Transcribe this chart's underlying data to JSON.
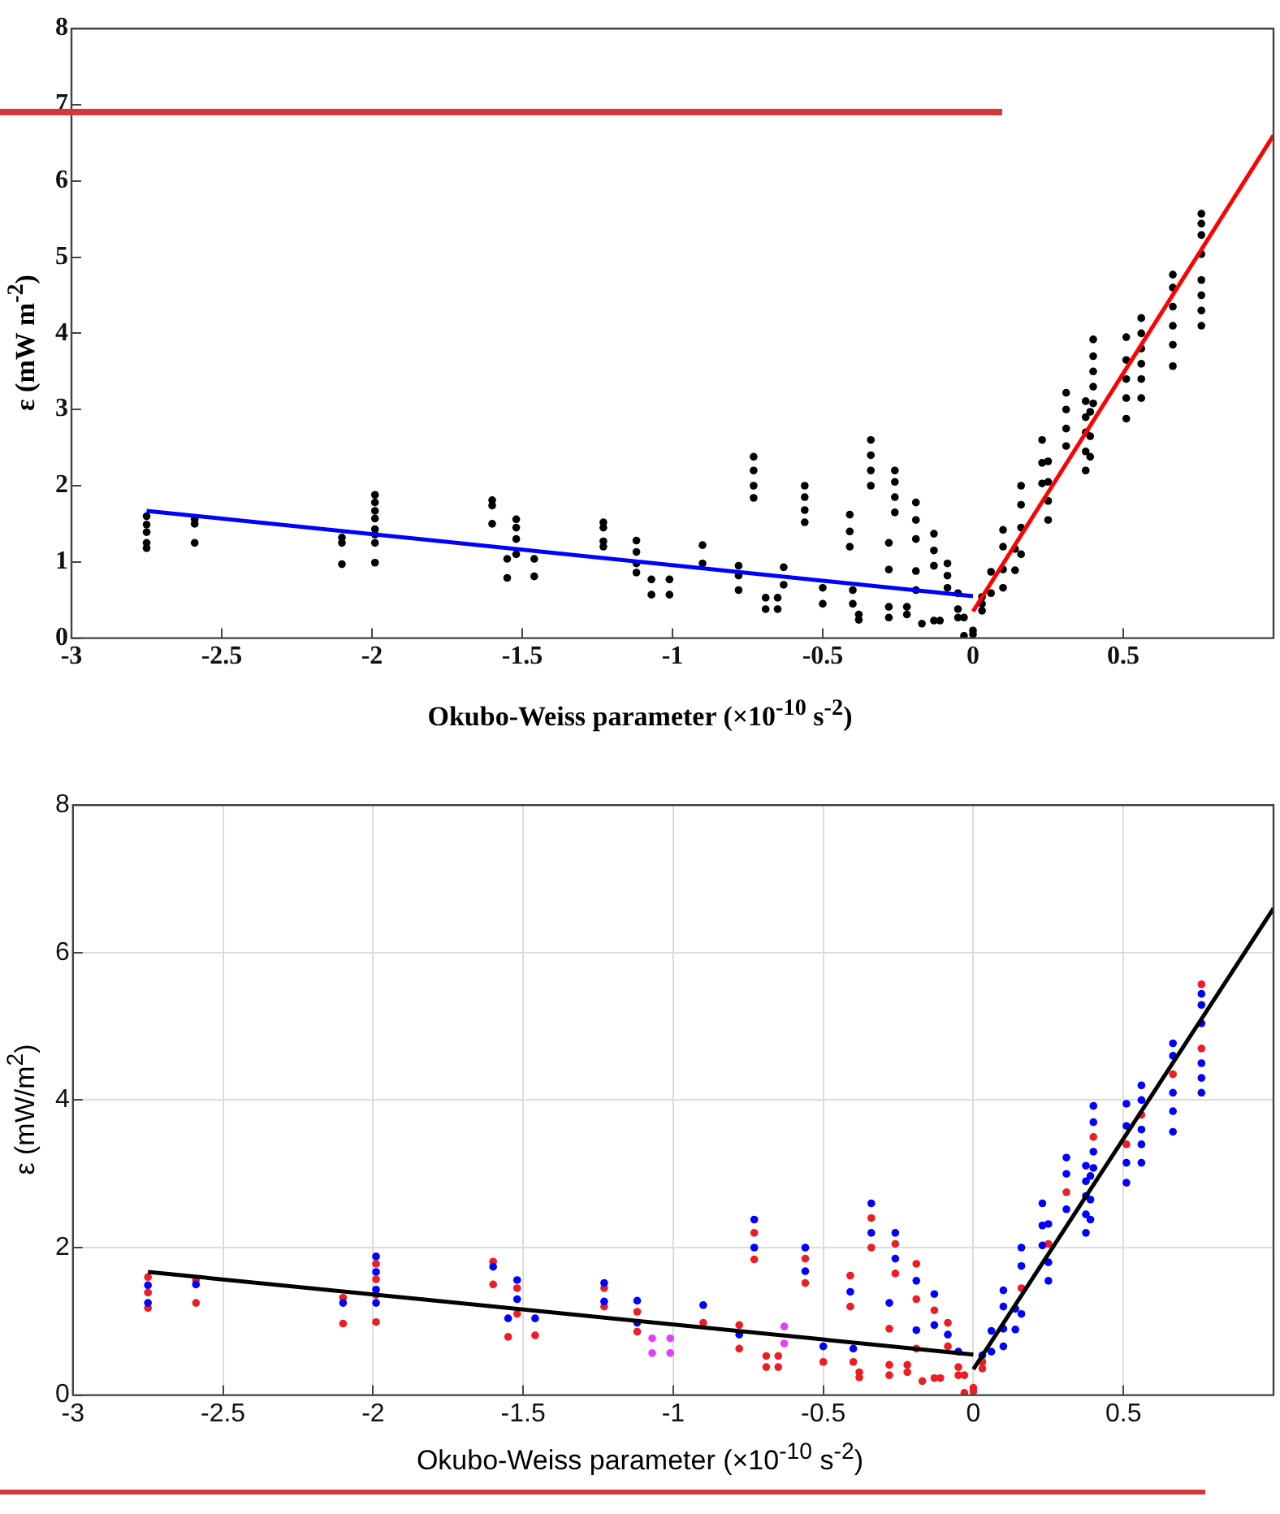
{
  "chart_data": [
    {
      "type": "scatter",
      "xlabel": "Okubo-Weiss parameter (×10$^{-10}$ s$^{-2}$)",
      "ylabel": "ε (mW m$^{-2}$)",
      "xlim": [
        -3,
        1
      ],
      "ylim": [
        0,
        8
      ],
      "xticks": [
        -3,
        -2.5,
        -2,
        -1.5,
        -1,
        -0.5,
        0,
        0.5
      ],
      "yticks": [
        0,
        1,
        2,
        3,
        4,
        5,
        6,
        7,
        8
      ],
      "grid": false,
      "legend": false,
      "series": [
        {
          "color": "#000000",
          "marker": "circle",
          "x": [
            -2.75,
            -2.75,
            -2.75,
            -2.75,
            -2.75,
            -2.59,
            -2.59,
            -2.59,
            -2.1,
            -2.1,
            -2.1,
            -1.99,
            -1.99,
            -1.99,
            -1.99,
            -1.99,
            -1.99,
            -1.99,
            -1.99,
            -1.6,
            -1.6,
            -1.6,
            -1.55,
            -1.55,
            -1.52,
            -1.52,
            -1.52,
            -1.52,
            -1.46,
            -1.46,
            -1.23,
            -1.23,
            -1.23,
            -1.23,
            -1.12,
            -1.12,
            -1.12,
            -1.12,
            -1.07,
            -1.07,
            -1.01,
            -1.01,
            -0.9,
            -0.9,
            -0.78,
            -0.78,
            -0.78,
            -0.73,
            -0.73,
            -0.73,
            -0.73,
            -0.69,
            -0.69,
            -0.65,
            -0.65,
            -0.63,
            -0.63,
            -0.56,
            -0.56,
            -0.56,
            -0.56,
            -0.5,
            -0.5,
            -0.41,
            -0.41,
            -0.41,
            -0.4,
            -0.4,
            -0.38,
            -0.38,
            -0.34,
            -0.34,
            -0.34,
            -0.34,
            -0.28,
            -0.28,
            -0.28,
            -0.28,
            -0.26,
            -0.26,
            -0.26,
            -0.26,
            -0.22,
            -0.22,
            -0.19,
            -0.19,
            -0.19,
            -0.19,
            -0.19,
            -0.17,
            -0.13,
            -0.13,
            -0.13,
            -0.13,
            -0.11,
            -0.085,
            -0.085,
            -0.085,
            -0.05,
            -0.05,
            -0.05,
            -0.03,
            -0.03,
            0,
            0,
            0.03,
            0.03,
            0.03,
            0.06,
            0.06,
            0.1,
            0.1,
            0.1,
            0.1,
            0.14,
            0.14,
            0.16,
            0.16,
            0.16,
            0.16,
            0.23,
            0.23,
            0.23,
            0.25,
            0.25,
            0.25,
            0.25,
            0.31,
            0.31,
            0.31,
            0.31,
            0.375,
            0.375,
            0.375,
            0.375,
            0.375,
            0.39,
            0.39,
            0.39,
            0.4,
            0.4,
            0.4,
            0.4,
            0.4,
            0.51,
            0.51,
            0.51,
            0.51,
            0.51,
            0.56,
            0.56,
            0.56,
            0.56,
            0.56,
            0.56,
            0.665,
            0.665,
            0.665,
            0.665,
            0.665,
            0.665,
            0.76,
            0.76,
            0.76,
            0.76,
            0.76,
            0.76,
            0.76,
            0.76
          ],
          "values": [
            1.18,
            1.25,
            1.39,
            1.49,
            1.6,
            1.25,
            1.5,
            1.56,
            0.97,
            1.25,
            1.32,
            0.99,
            1.25,
            1.36,
            1.43,
            1.57,
            1.67,
            1.78,
            1.88,
            1.5,
            1.74,
            1.81,
            0.79,
            1.04,
            1.1,
            1.3,
            1.45,
            1.56,
            0.81,
            1.04,
            1.2,
            1.27,
            1.45,
            1.52,
            0.86,
            0.98,
            1.13,
            1.28,
            0.57,
            0.77,
            0.57,
            0.77,
            0.98,
            1.22,
            0.63,
            0.82,
            0.95,
            1.84,
            2.0,
            2.2,
            2.38,
            0.38,
            0.53,
            0.38,
            0.53,
            0.7,
            0.93,
            1.52,
            1.68,
            1.85,
            2.0,
            0.45,
            0.66,
            1.2,
            1.4,
            1.62,
            0.45,
            0.63,
            0.24,
            0.31,
            2.0,
            2.2,
            2.4,
            2.6,
            0.27,
            0.41,
            0.9,
            1.25,
            1.65,
            1.85,
            2.05,
            2.2,
            0.31,
            0.41,
            0.63,
            0.88,
            1.3,
            1.55,
            1.78,
            0.19,
            0.23,
            0.95,
            1.15,
            1.37,
            0.23,
            0.66,
            0.82,
            0.98,
            0.27,
            0.38,
            0.59,
            0.03,
            0.27,
            0.05,
            0.1,
            0.36,
            0.45,
            0.54,
            0.59,
            0.87,
            0.66,
            0.9,
            1.2,
            1.42,
            0.89,
            1.17,
            1.1,
            1.45,
            1.75,
            2.0,
            2.03,
            2.3,
            2.6,
            1.55,
            1.8,
            2.05,
            2.32,
            2.52,
            2.75,
            3.0,
            3.22,
            2.2,
            2.45,
            2.7,
            2.9,
            3.11,
            2.38,
            2.65,
            2.97,
            3.08,
            3.3,
            3.5,
            3.7,
            3.92,
            2.88,
            3.15,
            3.4,
            3.65,
            3.95,
            3.15,
            3.4,
            3.6,
            3.8,
            4.0,
            4.2,
            3.57,
            3.85,
            4.1,
            4.35,
            4.6,
            4.77,
            4.1,
            4.3,
            4.5,
            4.7,
            5.04,
            5.29,
            5.44,
            5.57
          ]
        },
        {
          "type": "line",
          "color": "#0000ff",
          "marker": "none",
          "x": [
            -2.75,
            0
          ],
          "values": [
            1.67,
            0.55
          ]
        },
        {
          "type": "line",
          "color": "#ff0000",
          "marker": "none",
          "x": [
            0,
            1
          ],
          "values": [
            0.35,
            6.6
          ]
        }
      ]
    },
    {
      "type": "scatter",
      "xlabel": "Okubo-Weiss parameter (×10$^{-10}$ s$^{-2}$)",
      "ylabel": "ε (mW/m$^{2}$)",
      "xlim": [
        -3,
        1
      ],
      "ylim": [
        0,
        8
      ],
      "xticks": [
        -3,
        -2.5,
        -2,
        -1.5,
        -1,
        -0.5,
        0,
        0.5
      ],
      "yticks": [
        0,
        2,
        4,
        6,
        8
      ],
      "grid": true,
      "legend": false,
      "series": [
        {
          "color": "#0000ff",
          "marker": "circle",
          "x": [
            -2.75,
            -2.75,
            -2.59,
            -2.1,
            -1.99,
            -1.99,
            -1.99,
            -1.99,
            -1.6,
            -1.55,
            -1.52,
            -1.52,
            -1.46,
            -1.23,
            -1.23,
            -1.12,
            -1.12,
            -0.9,
            -0.78,
            -0.73,
            -0.73,
            -0.56,
            -0.56,
            -0.5,
            -0.41,
            -0.4,
            -0.34,
            -0.34,
            -0.28,
            -0.26,
            -0.26,
            -0.19,
            -0.19,
            -0.13,
            -0.13,
            -0.085,
            -0.05,
            0.03,
            0.06,
            0.06,
            0.1,
            0.1,
            0.1,
            0.1,
            0.14,
            0.14,
            0.16,
            0.16,
            0.16,
            0.23,
            0.23,
            0.23,
            0.25,
            0.25,
            0.25,
            0.31,
            0.31,
            0.31,
            0.375,
            0.375,
            0.375,
            0.375,
            0.375,
            0.39,
            0.39,
            0.39,
            0.4,
            0.4,
            0.4,
            0.4,
            0.51,
            0.51,
            0.51,
            0.51,
            0.56,
            0.56,
            0.56,
            0.56,
            0.56,
            0.665,
            0.665,
            0.665,
            0.665,
            0.665,
            0.76,
            0.76,
            0.76,
            0.76,
            0.76,
            0.76
          ],
          "values": [
            1.25,
            1.49,
            1.5,
            1.25,
            1.25,
            1.43,
            1.67,
            1.88,
            1.74,
            1.04,
            1.3,
            1.56,
            1.04,
            1.27,
            1.52,
            0.98,
            1.28,
            1.22,
            0.82,
            2.0,
            2.38,
            1.68,
            2.0,
            0.66,
            1.4,
            0.63,
            2.2,
            2.6,
            1.25,
            1.85,
            2.2,
            0.88,
            1.55,
            0.95,
            1.37,
            0.82,
            0.59,
            0.54,
            0.59,
            0.87,
            0.66,
            0.9,
            1.2,
            1.42,
            0.89,
            1.17,
            1.1,
            1.75,
            2.0,
            2.03,
            2.3,
            2.6,
            1.55,
            1.8,
            2.32,
            2.52,
            3.0,
            3.22,
            2.2,
            2.45,
            2.7,
            2.9,
            3.11,
            2.38,
            2.65,
            2.97,
            3.08,
            3.3,
            3.7,
            3.92,
            2.88,
            3.15,
            3.65,
            3.95,
            3.15,
            3.4,
            3.6,
            4.0,
            4.2,
            3.57,
            3.85,
            4.1,
            4.6,
            4.77,
            4.1,
            4.3,
            4.5,
            5.04,
            5.29,
            5.44
          ]
        },
        {
          "color": "#ee1c25",
          "marker": "circle",
          "x": [
            -2.75,
            -2.75,
            -2.75,
            -2.59,
            -2.59,
            -2.1,
            -2.1,
            -1.99,
            -1.99,
            -1.99,
            -1.99,
            -1.6,
            -1.6,
            -1.55,
            -1.52,
            -1.52,
            -1.46,
            -1.23,
            -1.23,
            -1.12,
            -1.12,
            -0.9,
            -0.78,
            -0.78,
            -0.73,
            -0.73,
            -0.69,
            -0.69,
            -0.65,
            -0.65,
            -0.56,
            -0.56,
            -0.5,
            -0.41,
            -0.41,
            -0.4,
            -0.38,
            -0.38,
            -0.34,
            -0.34,
            -0.28,
            -0.28,
            -0.28,
            -0.26,
            -0.26,
            -0.22,
            -0.22,
            -0.19,
            -0.19,
            -0.19,
            -0.17,
            -0.13,
            -0.13,
            -0.11,
            -0.085,
            -0.085,
            -0.05,
            -0.05,
            -0.03,
            -0.03,
            0,
            0,
            0.03,
            0.03,
            0.16,
            0.25,
            0.31,
            0.4,
            0.51,
            0.56,
            0.665,
            0.76,
            0.76
          ],
          "values": [
            1.18,
            1.39,
            1.6,
            1.25,
            1.56,
            0.97,
            1.32,
            0.99,
            1.36,
            1.57,
            1.78,
            1.5,
            1.81,
            0.79,
            1.1,
            1.45,
            0.81,
            1.2,
            1.45,
            0.86,
            1.13,
            0.98,
            0.63,
            0.95,
            1.84,
            2.2,
            0.38,
            0.53,
            0.38,
            0.53,
            1.52,
            1.85,
            0.45,
            1.2,
            1.62,
            0.45,
            0.24,
            0.31,
            2.0,
            2.4,
            0.27,
            0.41,
            0.9,
            1.65,
            2.05,
            0.31,
            0.41,
            0.63,
            1.3,
            1.78,
            0.19,
            0.23,
            1.15,
            0.23,
            0.66,
            0.98,
            0.27,
            0.38,
            0.03,
            0.27,
            0.05,
            0.1,
            0.36,
            0.45,
            1.45,
            2.05,
            2.75,
            3.5,
            3.4,
            3.8,
            4.35,
            4.7,
            5.57
          ]
        },
        {
          "color": "#e040fb",
          "marker": "circle",
          "x": [
            -1.07,
            -1.07,
            -1.01,
            -1.01,
            -0.63,
            -0.63
          ],
          "values": [
            0.57,
            0.77,
            0.57,
            0.77,
            0.7,
            0.93
          ]
        },
        {
          "type": "line",
          "color": "#000000",
          "marker": "none",
          "x": [
            -2.75,
            0
          ],
          "values": [
            1.67,
            0.55
          ]
        },
        {
          "type": "line",
          "color": "#000000",
          "marker": "none",
          "x": [
            0,
            1
          ],
          "values": [
            0.35,
            6.6
          ]
        }
      ]
    }
  ]
}
